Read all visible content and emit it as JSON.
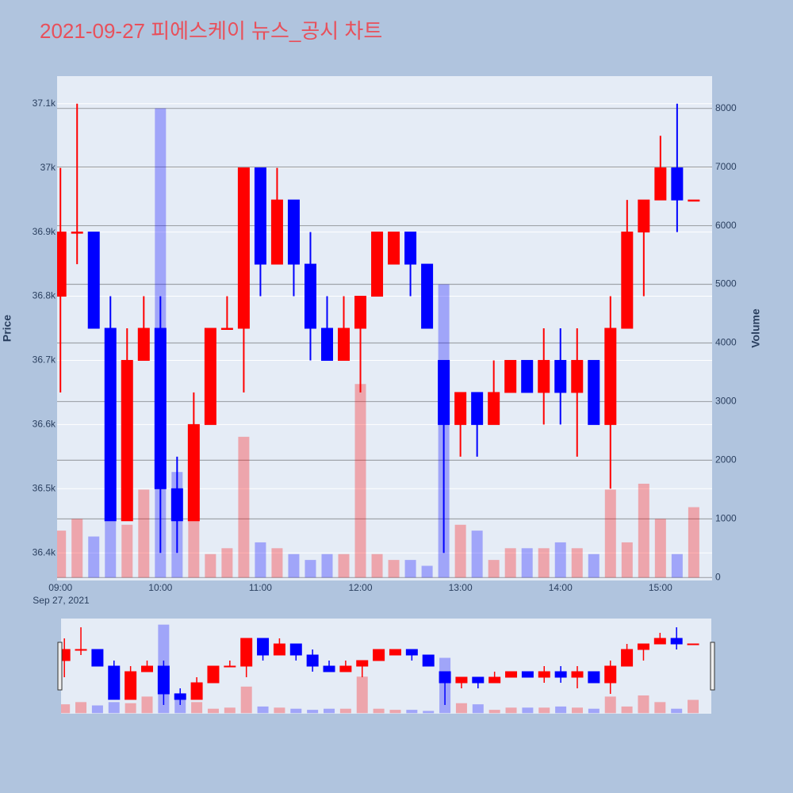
{
  "chart_data": {
    "type": "candlestick",
    "title": "2021-09-27 피에스케이 뉴스_공시 차트",
    "y_label": "Price",
    "y2_label": "Volume",
    "x_date_label": "Sep 27, 2021",
    "x": [
      "09:00",
      "09:10",
      "09:20",
      "09:30",
      "09:40",
      "09:50",
      "10:00",
      "10:10",
      "10:20",
      "10:30",
      "10:40",
      "10:50",
      "11:00",
      "11:10",
      "11:20",
      "11:30",
      "11:40",
      "11:50",
      "12:00",
      "12:10",
      "12:20",
      "12:30",
      "12:40",
      "12:50",
      "13:00",
      "13:10",
      "13:20",
      "13:30",
      "13:40",
      "13:50",
      "14:00",
      "14:10",
      "14:20",
      "14:30",
      "14:40",
      "14:50",
      "15:00",
      "15:10",
      "15:20"
    ],
    "open": [
      36800,
      36900,
      36900,
      36750,
      36450,
      36700,
      36750,
      36500,
      36450,
      36600,
      36750,
      36750,
      37000,
      36850,
      36950,
      36850,
      36750,
      36700,
      36750,
      36800,
      36850,
      36900,
      36850,
      36700,
      36600,
      36650,
      36600,
      36650,
      36700,
      36650,
      36700,
      36650,
      36700,
      36600,
      36750,
      36900,
      36950,
      37000,
      36950
    ],
    "high": [
      37000,
      37100,
      36900,
      36800,
      36750,
      36800,
      36800,
      36550,
      36650,
      36750,
      36800,
      37000,
      37000,
      37000,
      36950,
      36900,
      36800,
      36800,
      36800,
      36900,
      36900,
      36900,
      36850,
      36700,
      36650,
      36650,
      36700,
      36700,
      36700,
      36750,
      36750,
      36750,
      36700,
      36800,
      36950,
      36950,
      37050,
      37100,
      36950
    ],
    "low": [
      36650,
      36850,
      36750,
      36450,
      36450,
      36700,
      36400,
      36400,
      36450,
      36600,
      36750,
      36650,
      36800,
      36850,
      36800,
      36700,
      36700,
      36700,
      36650,
      36800,
      36850,
      36800,
      36750,
      36400,
      36550,
      36550,
      36600,
      36650,
      36650,
      36600,
      36600,
      36550,
      36600,
      36500,
      36750,
      36800,
      36950,
      36900,
      36950
    ],
    "close": [
      36900,
      36900,
      36750,
      36450,
      36700,
      36750,
      36500,
      36450,
      36600,
      36750,
      36750,
      37000,
      36850,
      36950,
      36850,
      36750,
      36700,
      36750,
      36800,
      36900,
      36900,
      36850,
      36750,
      36600,
      36650,
      36600,
      36650,
      36700,
      36650,
      36700,
      36650,
      36700,
      36600,
      36750,
      36900,
      36950,
      37000,
      36950,
      36950
    ],
    "volume": [
      800,
      1000,
      700,
      1000,
      900,
      1500,
      8000,
      1800,
      1000,
      400,
      500,
      2400,
      600,
      500,
      400,
      300,
      400,
      400,
      3300,
      400,
      300,
      300,
      200,
      5000,
      900,
      800,
      300,
      500,
      500,
      500,
      600,
      500,
      400,
      1500,
      600,
      1600,
      1000,
      400,
      1200
    ],
    "increasing_color": "#ff0000",
    "decreasing_color": "#0000ff",
    "xlim": [
      "08:58",
      "15:31"
    ],
    "xticks": [
      "09:00",
      "10:00",
      "11:00",
      "12:00",
      "13:00",
      "14:00",
      "15:00"
    ],
    "ylim": [
      36357,
      37143
    ],
    "yticks": [
      {
        "value": 36400,
        "label": "36.4k"
      },
      {
        "value": 36500,
        "label": "36.5k"
      },
      {
        "value": 36600,
        "label": "36.6k"
      },
      {
        "value": 36700,
        "label": "36.7k"
      },
      {
        "value": 36800,
        "label": "36.8k"
      },
      {
        "value": 36900,
        "label": "36.9k"
      },
      {
        "value": 37000,
        "label": "37k"
      },
      {
        "value": 37100,
        "label": "37.1k"
      }
    ],
    "y2lim": [
      -50,
      8550
    ],
    "y2ticks": [
      0,
      1000,
      2000,
      3000,
      4000,
      5000,
      6000,
      7000,
      8000
    ],
    "grid": true,
    "rangeslider": true
  }
}
